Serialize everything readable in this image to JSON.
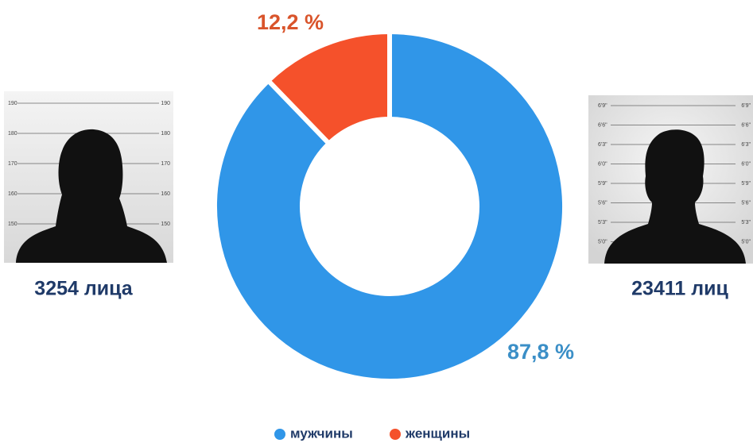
{
  "chart_data": {
    "type": "pie",
    "donut": true,
    "categories": [
      "мужчины",
      "женщины"
    ],
    "values": [
      87.8,
      12.2
    ],
    "value_labels": [
      "87,8 %",
      "12,2 %"
    ],
    "colors": [
      "#3096e8",
      "#f5512b"
    ],
    "label_colors": [
      "#3b8fc7",
      "#d9542b"
    ],
    "legend": "bottom",
    "annotations": [
      "3254 лица",
      "23411 лиц"
    ],
    "left_scale": [
      "190",
      "180",
      "170",
      "160",
      "150"
    ],
    "right_scale": [
      "6'9\"",
      "6'6\"",
      "6'3\"",
      "6'0\"",
      "5'9\"",
      "5'6\"",
      "5'3\"",
      "5'0\""
    ]
  }
}
